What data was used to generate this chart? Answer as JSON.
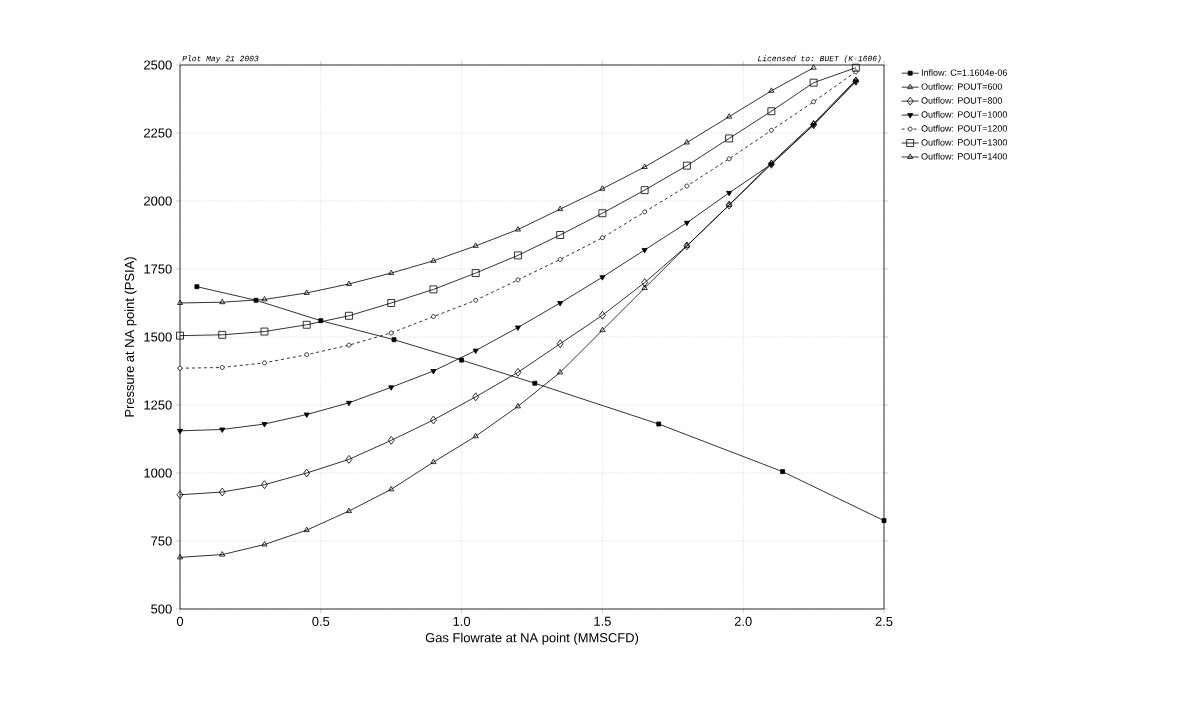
{
  "chart_data": {
    "type": "line",
    "xlabel": "Gas Flowrate at NA point (MMSCFD)",
    "ylabel": "Pressure at NA point (PSIA)",
    "annotations": [
      "Plot May 21 2003",
      "Licensed to: BUET (K-1606)"
    ],
    "xlim": [
      0,
      2.5
    ],
    "ylim": [
      500,
      2500
    ],
    "xticks": [
      {
        "value": 0,
        "label": "0"
      },
      {
        "value": 0.5,
        "label": "0.5"
      },
      {
        "value": 1,
        "label": "1.0"
      },
      {
        "value": 1.5,
        "label": "1.5"
      },
      {
        "value": 2,
        "label": "2.0"
      },
      {
        "value": 2.5,
        "label": "2.5"
      }
    ],
    "yticks": [
      500,
      750,
      1000,
      1250,
      1500,
      1750,
      2000,
      2250,
      2500
    ],
    "grid": true,
    "legend": "top right",
    "line_style": "solid",
    "series": [
      {
        "name": "Inflow: C=1.1604e-06",
        "color": "#000000",
        "marker": "square",
        "x": [
          0.06,
          0.27,
          0.5,
          0.76,
          1.0,
          1.26,
          1.7,
          2.14,
          2.5
        ],
        "values": [
          1685,
          1635,
          1560,
          1490,
          1415,
          1330,
          1180,
          1005,
          825
        ]
      },
      {
        "name": "Outflow: POUT=600",
        "color": "#000000",
        "marker": "triangle",
        "x": [
          0,
          0.15,
          0.3,
          0.45,
          0.6,
          0.75,
          0.9,
          1.05,
          1.2,
          1.35,
          1.5,
          1.65,
          1.8,
          1.95,
          2.1,
          2.25,
          2.4
        ],
        "values": [
          690,
          700,
          737,
          790,
          860,
          940,
          1040,
          1135,
          1245,
          1370,
          1525,
          1680,
          1835,
          1985,
          2140,
          2285,
          2445
        ]
      },
      {
        "name": "Outflow: POUT=800",
        "color": "#000000",
        "marker": "diamond",
        "x": [
          0,
          0.15,
          0.3,
          0.45,
          0.6,
          0.75,
          0.9,
          1.05,
          1.2,
          1.35,
          1.5,
          1.65,
          1.8,
          1.95,
          2.1,
          2.25,
          2.4
        ],
        "values": [
          920,
          930,
          957,
          1000,
          1050,
          1120,
          1195,
          1280,
          1370,
          1475,
          1580,
          1700,
          1835,
          1985,
          2135,
          2280,
          2440
        ]
      },
      {
        "name": "Outflow: POUT=1000",
        "color": "#000000",
        "marker": "triangle down",
        "x": [
          0,
          0.15,
          0.3,
          0.45,
          0.6,
          0.75,
          0.9,
          1.05,
          1.2,
          1.35,
          1.5,
          1.65,
          1.8,
          1.95,
          2.1,
          2.25,
          2.4
        ],
        "values": [
          1155,
          1160,
          1180,
          1215,
          1258,
          1315,
          1375,
          1450,
          1535,
          1625,
          1720,
          1820,
          1920,
          2030,
          2135,
          2280,
          2440
        ]
      },
      {
        "name": "Outflow: POUT=1200",
        "color": "#000000",
        "marker": "circle",
        "line_style": "dashed",
        "x": [
          0,
          0.15,
          0.3,
          0.45,
          0.6,
          0.75,
          0.9,
          1.05,
          1.2,
          1.35,
          1.5,
          1.65,
          1.8,
          1.95,
          2.1,
          2.25,
          2.4
        ],
        "values": [
          1385,
          1388,
          1405,
          1435,
          1470,
          1515,
          1575,
          1635,
          1710,
          1785,
          1865,
          1960,
          2055,
          2155,
          2260,
          2365,
          2475
        ]
      },
      {
        "name": "Outflow: POUT=1300",
        "color": "#000000",
        "marker": "square open",
        "x": [
          0,
          0.15,
          0.3,
          0.45,
          0.6,
          0.75,
          0.9,
          1.05,
          1.2,
          1.35,
          1.5,
          1.65,
          1.8,
          1.95,
          2.1,
          2.25,
          2.4
        ],
        "values": [
          1505,
          1508,
          1520,
          1545,
          1578,
          1625,
          1675,
          1735,
          1800,
          1875,
          1955,
          2040,
          2130,
          2230,
          2330,
          2435,
          2490
        ]
      },
      {
        "name": "Outflow: POUT=1400",
        "color": "#000000",
        "marker": "triangle",
        "x": [
          0,
          0.15,
          0.3,
          0.45,
          0.6,
          0.75,
          0.9,
          1.05,
          1.2,
          1.35,
          1.5,
          1.65,
          1.8,
          1.95,
          2.1,
          2.25
        ],
        "values": [
          1625,
          1628,
          1638,
          1662,
          1695,
          1735,
          1780,
          1835,
          1895,
          1970,
          2045,
          2125,
          2215,
          2310,
          2405,
          2490
        ]
      }
    ]
  }
}
